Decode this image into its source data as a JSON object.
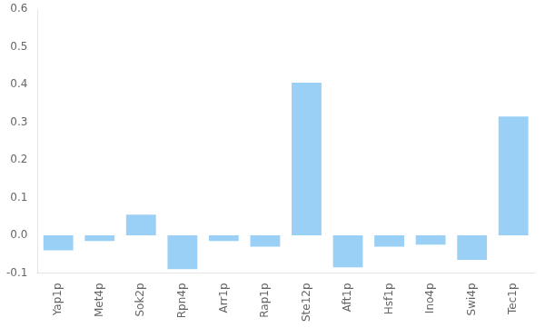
{
  "chart_data": {
    "type": "bar",
    "categories": [
      "Yap1p",
      "Met4p",
      "Sok2p",
      "Rpn4p",
      "Arr1p",
      "Rap1p",
      "Ste12p",
      "Aft1p",
      "Hsf1p",
      "Ino4p",
      "Swi4p",
      "Tec1p"
    ],
    "values": [
      -0.04,
      -0.015,
      0.055,
      -0.09,
      -0.015,
      -0.03,
      0.405,
      -0.085,
      -0.03,
      -0.025,
      -0.065,
      0.315
    ],
    "ylim": [
      -0.1,
      0.6
    ],
    "yticks": [
      -0.1,
      {
        "value": 0,
        "label": "0.0"
      },
      0.1,
      0.2,
      0.3,
      0.4,
      0.5,
      0.6
    ],
    "grid": false
  }
}
